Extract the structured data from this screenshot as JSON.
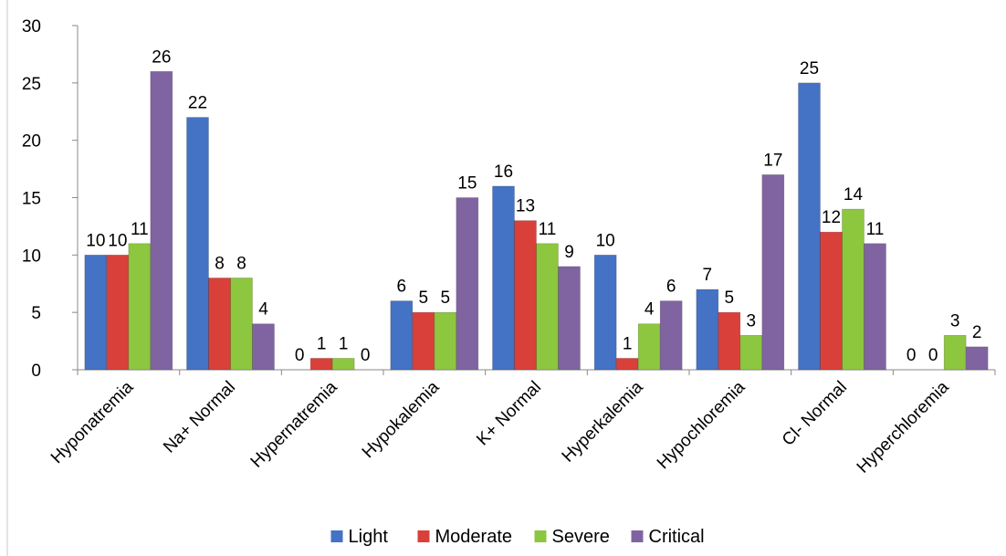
{
  "chart_data": {
    "type": "bar",
    "title": "",
    "xlabel": "",
    "ylabel": "",
    "ylim": [
      0,
      30
    ],
    "yticks": [
      0,
      5,
      10,
      15,
      20,
      25,
      30
    ],
    "grid": false,
    "legend_position": "bottom",
    "categories": [
      "Hyponatremia",
      "Na+ Normal",
      "Hypernatremia",
      "Hypokalemia",
      "K+ Normal",
      "Hyperkalemia",
      "Hypochloremia",
      "Cl- Normal",
      "Hyperchloremia"
    ],
    "series": [
      {
        "name": "Light",
        "color": "#4472C4",
        "values": [
          10,
          22,
          0,
          6,
          16,
          10,
          7,
          25,
          0
        ]
      },
      {
        "name": "Moderate",
        "color": "#D9403A",
        "values": [
          10,
          8,
          1,
          5,
          13,
          1,
          5,
          12,
          0
        ]
      },
      {
        "name": "Severe",
        "color": "#8DC63F",
        "values": [
          11,
          8,
          1,
          5,
          11,
          4,
          3,
          14,
          3
        ]
      },
      {
        "name": "Critical",
        "color": "#8064A2",
        "values": [
          26,
          4,
          0,
          15,
          9,
          6,
          17,
          11,
          2
        ]
      }
    ]
  }
}
